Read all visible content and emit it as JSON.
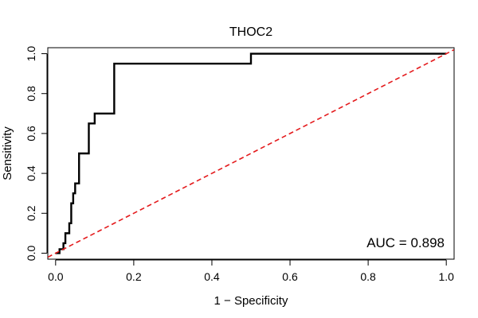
{
  "chart_data": {
    "type": "line",
    "title": "THOC2",
    "xlabel": "1 − Specificity",
    "ylabel": "Sensitivity",
    "xlim": [
      -0.02,
      1.02
    ],
    "ylim": [
      -0.03,
      1.03
    ],
    "xticks": [
      "0.0",
      "0.2",
      "0.4",
      "0.6",
      "0.8",
      "1.0"
    ],
    "yticks": [
      "0.0",
      "0.2",
      "0.4",
      "0.6",
      "0.8",
      "1.0"
    ],
    "grid": false,
    "annotation": "AUC = 0.898",
    "series": [
      {
        "style": "solid",
        "color": "#000000",
        "x": [
          0.0,
          0.01,
          0.01,
          0.02,
          0.02,
          0.025,
          0.025,
          0.035,
          0.035,
          0.04,
          0.04,
          0.045,
          0.045,
          0.05,
          0.05,
          0.06,
          0.06,
          0.085,
          0.085,
          0.1,
          0.1,
          0.15,
          0.15,
          0.5,
          0.5,
          1.0
        ],
        "y": [
          0.0,
          0.0,
          0.02,
          0.02,
          0.05,
          0.05,
          0.1,
          0.1,
          0.15,
          0.15,
          0.25,
          0.25,
          0.3,
          0.3,
          0.35,
          0.35,
          0.5,
          0.5,
          0.65,
          0.65,
          0.7,
          0.7,
          0.95,
          0.95,
          1.0,
          1.0
        ]
      },
      {
        "style": "dashed",
        "color": "#e41a1c",
        "x": [
          -0.02,
          1.02
        ],
        "y": [
          -0.02,
          1.02
        ]
      }
    ]
  }
}
